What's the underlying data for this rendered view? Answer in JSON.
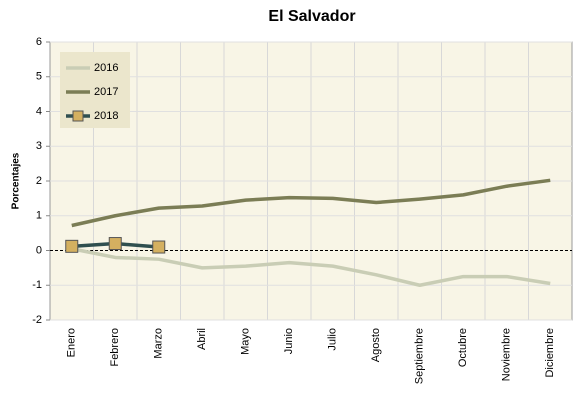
{
  "chart_data": {
    "type": "line",
    "title": "El Salvador",
    "y_label": "Porcentajes",
    "categories": [
      "Enero",
      "Febrero",
      "Marzo",
      "Abril",
      "Mayo",
      "Junio",
      "Julio",
      "Agosto",
      "Septiembre",
      "Octubre",
      "Noviembre",
      "Diciembre"
    ],
    "series": [
      {
        "name": "2016",
        "color": "#c9cdb5",
        "values": [
          0.05,
          -0.2,
          -0.25,
          -0.5,
          -0.45,
          -0.35,
          -0.45,
          -0.7,
          -1.0,
          -0.75,
          -0.75,
          -0.95
        ]
      },
      {
        "name": "2017",
        "color": "#7b7d55",
        "values": [
          0.72,
          1.0,
          1.22,
          1.28,
          1.45,
          1.52,
          1.5,
          1.38,
          1.48,
          1.6,
          1.85,
          2.02
        ]
      },
      {
        "name": "2018",
        "color": "#2f4f4f",
        "marker": "square",
        "marker_color": "#d4b060",
        "values": [
          0.12,
          0.2,
          0.1,
          null,
          null,
          null,
          null,
          null,
          null,
          null,
          null,
          null
        ]
      }
    ],
    "ylim": [
      -2,
      6
    ],
    "yticks": [
      -2,
      -1,
      0,
      1,
      2,
      3,
      4,
      5,
      6
    ],
    "grid": true,
    "legend": "upper left"
  }
}
